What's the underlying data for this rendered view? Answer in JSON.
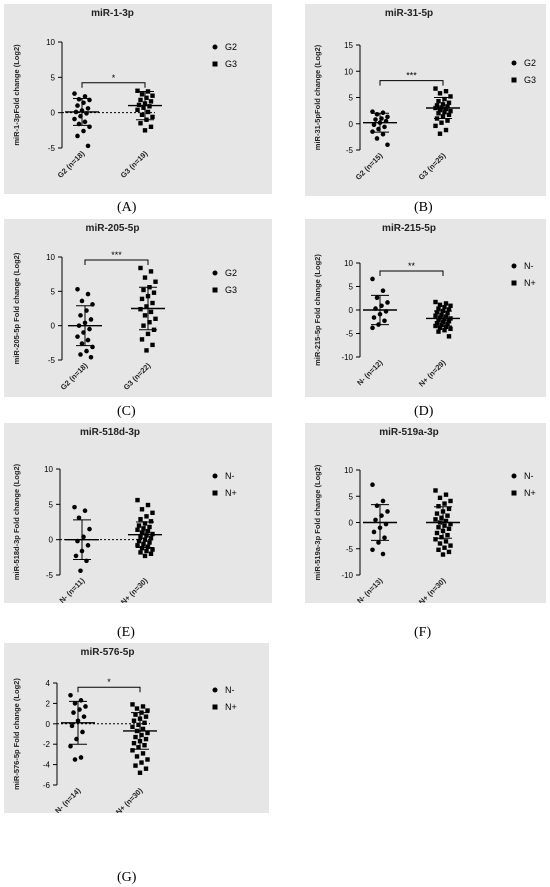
{
  "chart_data": [
    {
      "type": "scatter",
      "letter": "(A)",
      "title": "miR-1-3p",
      "ylabel": "miR-1-3pFold change (Log2)",
      "ylim": [
        -5,
        10
      ],
      "yticks": [
        -5,
        0,
        5,
        10
      ],
      "significance": "*",
      "dotted_zero": true,
      "legend": [
        {
          "name": "G2",
          "marker": "circle"
        },
        {
          "name": "G3",
          "marker": "square"
        }
      ],
      "groups": [
        {
          "label": "G2 (n=18)",
          "marker": "circle",
          "mean": 0.1,
          "sd": 1.9,
          "values": [
            2.7,
            2.3,
            1.9,
            1.8,
            1.4,
            1.0,
            0.6,
            0.3,
            0.1,
            -0.1,
            -0.5,
            -0.9,
            -1.3,
            -1.6,
            -2.0,
            -2.6,
            -3.3,
            -4.7
          ]
        },
        {
          "label": "G3 (n=19)",
          "marker": "square",
          "mean": 1.0,
          "sd": 2.0,
          "values": [
            3.1,
            3.0,
            2.6,
            2.4,
            2.1,
            1.8,
            1.6,
            1.3,
            1.1,
            0.9,
            0.7,
            0.4,
            0.1,
            -0.3,
            -0.6,
            -1.0,
            -1.5,
            -2.0,
            -2.5
          ]
        }
      ]
    },
    {
      "type": "scatter",
      "letter": "(B)",
      "title": "miR-31-5p",
      "ylabel": "miR-31-5pFold change (Log2)",
      "ylim": [
        -5,
        15
      ],
      "yticks": [
        -5,
        0,
        5,
        10,
        15
      ],
      "significance": "***",
      "dotted_zero": false,
      "legend": [
        {
          "name": "G2",
          "marker": "circle"
        },
        {
          "name": "G3",
          "marker": "square"
        }
      ],
      "groups": [
        {
          "label": "G2 (n=15)",
          "marker": "circle",
          "mean": 0.2,
          "sd": 1.8,
          "values": [
            2.3,
            2.1,
            1.8,
            1.3,
            1.0,
            0.8,
            0.5,
            0.2,
            -0.2,
            -0.6,
            -1.0,
            -1.5,
            -2.0,
            -2.8,
            -4.0
          ]
        },
        {
          "label": "G3 (n=25)",
          "marker": "square",
          "mean": 3.0,
          "sd": 2.0,
          "values": [
            6.7,
            6.2,
            5.8,
            5.2,
            4.7,
            4.3,
            4.0,
            3.7,
            3.5,
            3.3,
            3.1,
            3.0,
            2.8,
            2.6,
            2.4,
            2.2,
            2.0,
            1.7,
            1.4,
            1.0,
            0.6,
            0.2,
            -0.4,
            -1.2,
            -1.9
          ]
        }
      ]
    },
    {
      "type": "scatter",
      "letter": "(C)",
      "title": "miR-205-5p",
      "ylabel": "miR-205-5p Fold change (Log2)",
      "ylim": [
        -5,
        10
      ],
      "yticks": [
        -5,
        0,
        5,
        10
      ],
      "significance": "***",
      "dotted_zero": false,
      "legend": [
        {
          "name": "G2",
          "marker": "circle"
        },
        {
          "name": "G3",
          "marker": "square"
        }
      ],
      "groups": [
        {
          "label": "G2 (n=18)",
          "marker": "circle",
          "mean": 0.0,
          "sd": 2.9,
          "values": [
            5.3,
            4.6,
            3.6,
            3.1,
            2.2,
            1.5,
            0.9,
            0.4,
            0.0,
            -0.5,
            -1.0,
            -1.6,
            -2.1,
            -2.6,
            -3.1,
            -3.7,
            -4.2,
            -4.6
          ]
        },
        {
          "label": "G3 (n=22)",
          "marker": "square",
          "mean": 2.5,
          "sd": 3.1,
          "values": [
            8.4,
            7.9,
            7.0,
            6.4,
            5.6,
            5.2,
            4.8,
            4.3,
            3.9,
            3.3,
            2.8,
            2.4,
            2.0,
            1.5,
            1.0,
            0.5,
            0.0,
            -0.6,
            -1.2,
            -2.0,
            -2.8,
            -3.6
          ]
        }
      ]
    },
    {
      "type": "scatter",
      "letter": "(D)",
      "title": "miR-215-5p",
      "ylabel": "miR-215-5p Fold change (Log2)",
      "ylim": [
        -10,
        10
      ],
      "yticks": [
        -10,
        -5,
        0,
        5,
        10
      ],
      "significance": "**",
      "dotted_zero": false,
      "legend": [
        {
          "name": "N-",
          "marker": "circle"
        },
        {
          "name": "N+",
          "marker": "square"
        }
      ],
      "groups": [
        {
          "label": "N- (n=12)",
          "marker": "circle",
          "mean": 0.0,
          "sd": 3.1,
          "values": [
            6.6,
            4.1,
            2.6,
            1.6,
            0.9,
            0.3,
            -0.3,
            -0.9,
            -1.6,
            -2.3,
            -3.1,
            -3.8
          ]
        },
        {
          "label": "N+ (n=29)",
          "marker": "square",
          "mean": -1.8,
          "sd": 1.6,
          "values": [
            1.7,
            1.4,
            1.1,
            0.9,
            0.6,
            0.3,
            0.1,
            -0.2,
            -0.5,
            -0.7,
            -1.0,
            -1.2,
            -1.4,
            -1.6,
            -1.8,
            -2.0,
            -2.2,
            -2.4,
            -2.6,
            -2.8,
            -3.0,
            -3.2,
            -3.4,
            -3.6,
            -3.8,
            -4.0,
            -4.3,
            -4.6,
            -5.6
          ]
        }
      ]
    },
    {
      "type": "scatter",
      "letter": "(E)",
      "title": "miR-518d-3p",
      "ylabel": "miR-518d-3p Fold change (Log2)",
      "ylim": [
        -5,
        10
      ],
      "yticks": [
        -5,
        0,
        5,
        10
      ],
      "significance": "",
      "dotted_zero": true,
      "legend": [
        {
          "name": "N-",
          "marker": "circle"
        },
        {
          "name": "N+",
          "marker": "square"
        }
      ],
      "groups": [
        {
          "label": "N- (n=11)",
          "marker": "circle",
          "mean": 0.0,
          "sd": 2.8,
          "values": [
            4.6,
            4.1,
            3.1,
            1.5,
            0.4,
            -0.2,
            -0.8,
            -1.6,
            -2.3,
            -3.0,
            -4.4
          ]
        },
        {
          "label": "N+ (n=30)",
          "marker": "square",
          "mean": 0.7,
          "sd": 1.8,
          "values": [
            5.6,
            4.9,
            4.3,
            3.8,
            3.3,
            2.9,
            2.6,
            2.3,
            2.0,
            1.8,
            1.6,
            1.4,
            1.2,
            1.0,
            0.8,
            0.6,
            0.4,
            0.2,
            0.0,
            -0.2,
            -0.4,
            -0.6,
            -0.8,
            -1.0,
            -1.2,
            -1.4,
            -1.6,
            -1.8,
            -2.0,
            -2.3
          ]
        }
      ]
    },
    {
      "type": "scatter",
      "letter": "(F)",
      "title": "miR-519a-3p",
      "ylabel": "miR-519a-3p Fold change (Log2)",
      "ylim": [
        -10,
        10
      ],
      "yticks": [
        -10,
        -5,
        0,
        5,
        10
      ],
      "significance": "",
      "dotted_zero": false,
      "legend": [
        {
          "name": "N-",
          "marker": "circle"
        },
        {
          "name": "N+",
          "marker": "square"
        }
      ],
      "groups": [
        {
          "label": "N- (n=13)",
          "marker": "circle",
          "mean": 0.0,
          "sd": 3.4,
          "values": [
            7.2,
            4.1,
            3.2,
            2.1,
            1.3,
            0.5,
            -0.3,
            -1.0,
            -1.8,
            -2.9,
            -3.8,
            -5.2,
            -6.0
          ]
        },
        {
          "label": "N+ (n=30)",
          "marker": "square",
          "mean": 0.0,
          "sd": 3.0,
          "values": [
            6.1,
            5.3,
            4.7,
            4.1,
            3.6,
            3.1,
            2.6,
            2.1,
            1.7,
            1.3,
            0.9,
            0.6,
            0.3,
            0.0,
            -0.3,
            -0.6,
            -0.9,
            -1.2,
            -1.6,
            -2.0,
            -2.4,
            -2.8,
            -3.2,
            -3.6,
            -4.0,
            -4.4,
            -4.8,
            -5.2,
            -5.6,
            -6.1
          ]
        }
      ]
    },
    {
      "type": "scatter",
      "letter": "(G)",
      "title": "miR-576-5p",
      "ylabel": "miR-576-5p Fold change (Log2)",
      "ylim": [
        -6,
        4
      ],
      "yticks": [
        -6,
        -4,
        -2,
        0,
        2,
        4
      ],
      "significance": "*",
      "dotted_zero": true,
      "legend": [
        {
          "name": "N-",
          "marker": "circle"
        },
        {
          "name": "N+",
          "marker": "square"
        }
      ],
      "groups": [
        {
          "label": "N- (n=14)",
          "marker": "circle",
          "mean": 0.1,
          "sd": 2.1,
          "values": [
            2.8,
            2.3,
            2.0,
            1.7,
            1.4,
            1.1,
            0.7,
            0.3,
            -0.2,
            -0.8,
            -1.5,
            -2.2,
            -3.3,
            -3.5
          ]
        },
        {
          "label": "N+ (n=30)",
          "marker": "square",
          "mean": -0.7,
          "sd": 1.8,
          "values": [
            1.9,
            1.7,
            1.5,
            1.3,
            1.1,
            0.9,
            0.7,
            0.5,
            0.3,
            0.1,
            -0.1,
            -0.3,
            -0.5,
            -0.7,
            -0.9,
            -1.1,
            -1.3,
            -1.5,
            -1.7,
            -1.9,
            -2.1,
            -2.3,
            -2.6,
            -2.9,
            -3.2,
            -3.5,
            -3.8,
            -4.1,
            -4.4,
            -4.8
          ]
        }
      ]
    }
  ]
}
